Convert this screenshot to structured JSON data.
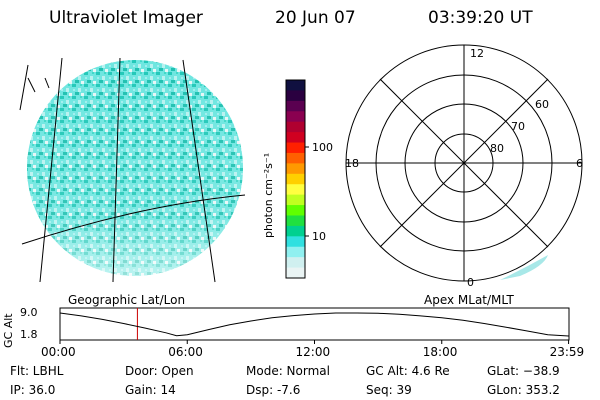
{
  "header": {
    "title": "Ultraviolet Imager",
    "date": "20 Jun 07",
    "time": "03:39:20 UT"
  },
  "colorbar": {
    "unit_label": "photon cm⁻²s⁻¹",
    "ticks": [
      "100",
      "10"
    ],
    "colors": [
      "#101040",
      "#2a0040",
      "#5a0050",
      "#8a0050",
      "#b00030",
      "#d00020",
      "#ff2000",
      "#ff6000",
      "#ff9900",
      "#ffd000",
      "#ffff40",
      "#c0ff20",
      "#60ff00",
      "#20e040",
      "#00d090",
      "#30e0e0",
      "#90f0f0",
      "#d0f0f0",
      "#eaf4f4"
    ]
  },
  "geo_label": "Geographic Lat/Lon",
  "apex_label": "Apex MLat/MLT",
  "polar": {
    "mlt_labels": [
      "12",
      "18",
      "6",
      "0"
    ],
    "lat_labels": [
      "60",
      "70",
      "80"
    ]
  },
  "chart_data": {
    "type": "line",
    "title": "",
    "ylabel": "GC Alt",
    "ytick_labels": [
      "9.0",
      "1.8"
    ],
    "xtick_labels": [
      "00:00",
      "06:00",
      "12:00",
      "18:00",
      "23:59"
    ],
    "xlim": [
      0,
      24
    ],
    "ylim": [
      1.8,
      9.0
    ],
    "marker_time": 3.65,
    "series": [
      {
        "x": [
          0,
          1,
          2,
          3,
          4,
          5,
          5.5,
          6,
          7,
          8,
          9,
          10,
          11,
          12,
          13,
          14,
          15,
          16,
          17,
          18,
          19,
          20,
          21,
          22,
          23,
          23.98
        ],
        "values": [
          9.0,
          8.1,
          7.0,
          5.7,
          4.3,
          2.8,
          1.9,
          2.2,
          3.8,
          5.3,
          6.5,
          7.5,
          8.2,
          8.7,
          9.0,
          9.0,
          8.9,
          8.6,
          8.1,
          7.5,
          6.7,
          5.7,
          4.6,
          3.4,
          2.2,
          1.8
        ]
      }
    ]
  },
  "info": {
    "flt": "Flt: LBHL",
    "ip": "IP: 36.0",
    "door": "Door: Open",
    "gain": "Gain: 14",
    "mode": "Mode: Normal",
    "dsp": "Dsp:    -7.6",
    "gcalt": "GC Alt: 4.6 Re",
    "seq": "Seq: 39",
    "glat": "GLat: −38.9",
    "glon": "GLon: 353.2"
  }
}
